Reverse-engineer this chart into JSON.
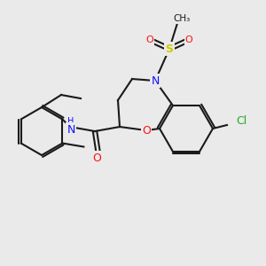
{
  "background_color": "#eaeaea",
  "bond_color": "#1a1a1a",
  "atom_colors": {
    "N": "#1010ff",
    "O": "#ff1010",
    "S": "#cccc00",
    "Cl": "#22aa22",
    "C": "#1a1a1a"
  },
  "figsize": [
    3.0,
    3.0
  ],
  "dpi": 100
}
